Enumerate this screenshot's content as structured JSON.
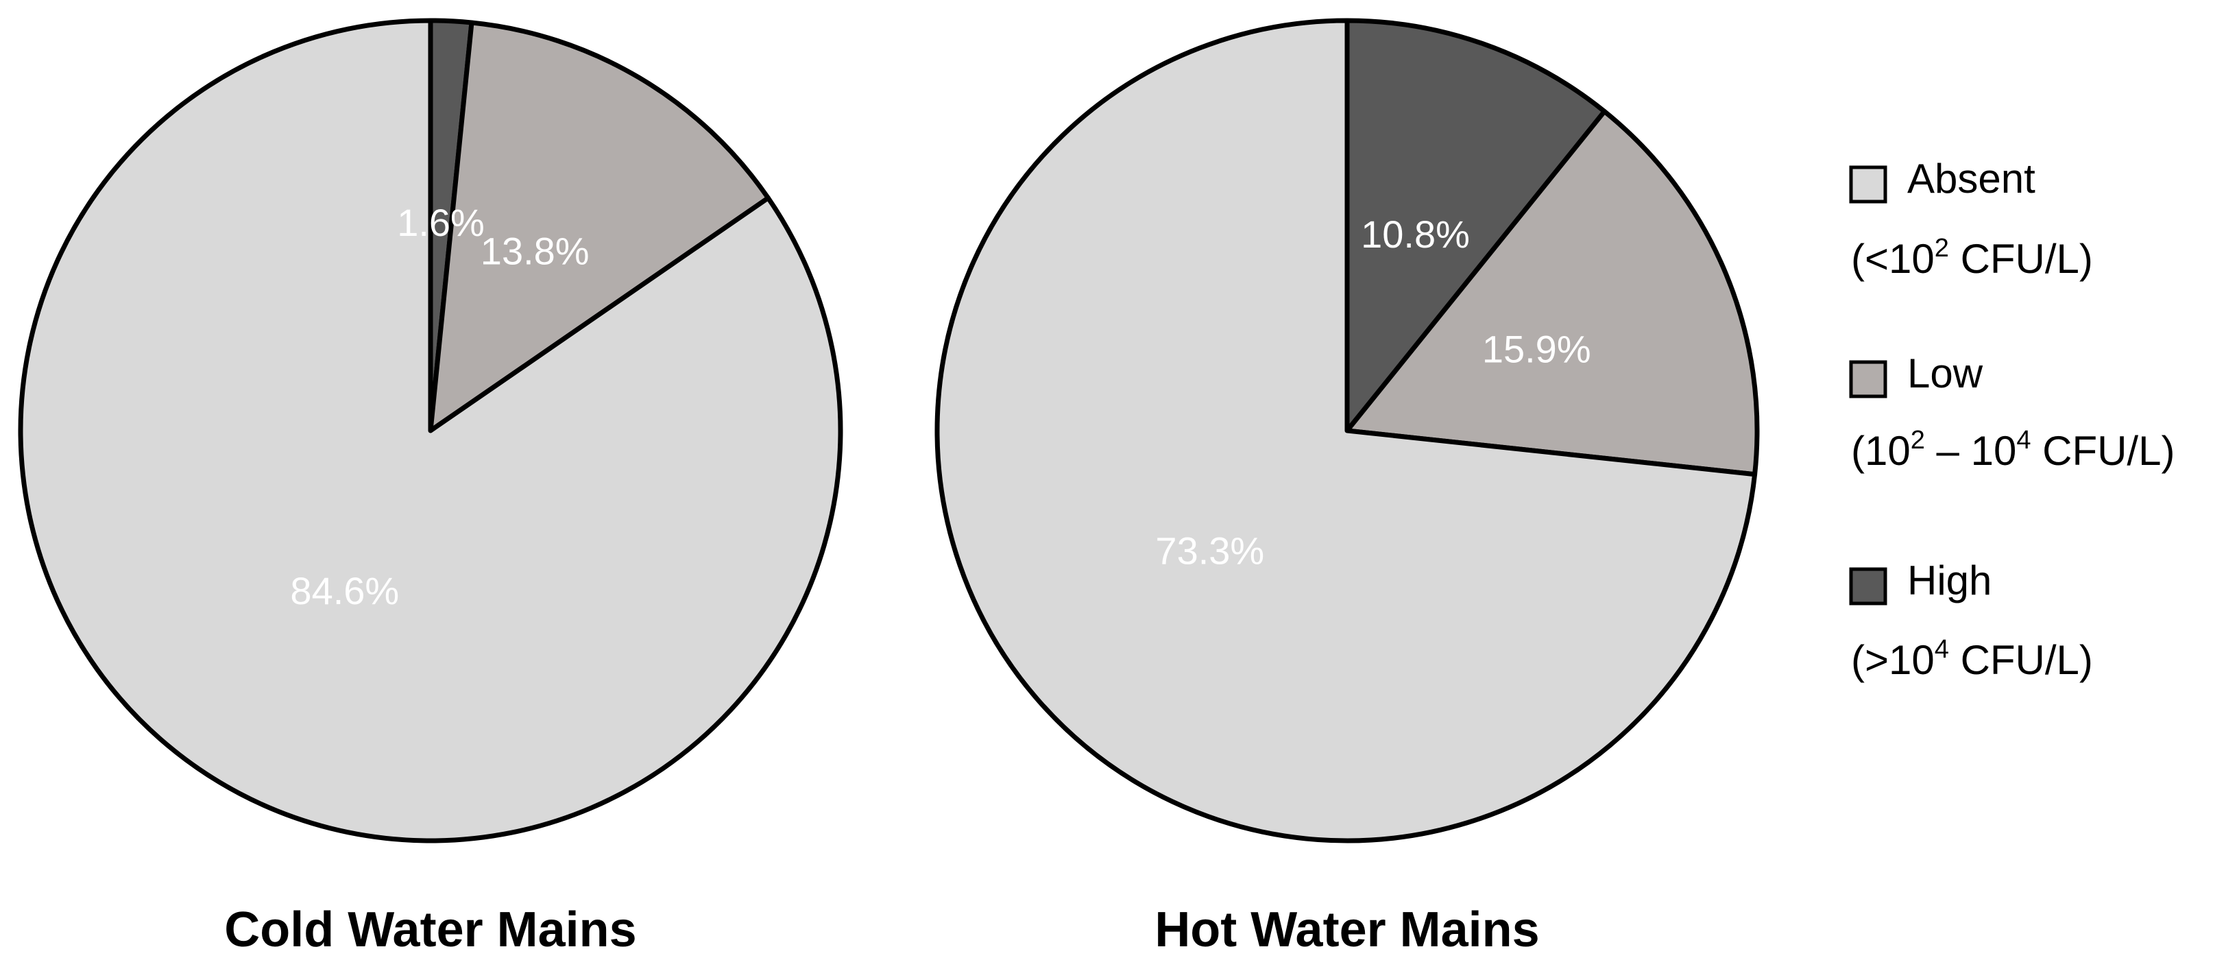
{
  "chart_data": [
    {
      "type": "pie",
      "title": "Cold Water Mains",
      "categories": [
        "High",
        "Low",
        "Absent"
      ],
      "values": [
        1.6,
        13.8,
        84.6
      ],
      "labels": [
        "1.6%",
        "13.8%",
        "84.6%"
      ],
      "start_angle": "top",
      "direction": "clockwise"
    },
    {
      "type": "pie",
      "title": "Hot Water Mains",
      "categories": [
        "High",
        "Low",
        "Absent"
      ],
      "values": [
        10.8,
        15.9,
        73.3
      ],
      "labels": [
        "10.8%",
        "15.9%",
        "73.3%"
      ],
      "start_angle": "top",
      "direction": "clockwise"
    }
  ],
  "legend": {
    "placement": "right",
    "entries": [
      {
        "category": "Absent",
        "name": "Absent",
        "range_parts": [
          [
            "(<10",
            ""
          ],
          [
            "2",
            "sup"
          ],
          [
            " CFU/L)",
            ""
          ]
        ]
      },
      {
        "category": "Low",
        "name": "Low",
        "range_parts": [
          [
            "(10",
            ""
          ],
          [
            "2",
            "sup"
          ],
          [
            " – 10",
            ""
          ],
          [
            "4",
            "sup"
          ],
          [
            " CFU/L)",
            ""
          ]
        ]
      },
      {
        "category": "High",
        "name": "High",
        "range_parts": [
          [
            "(>10",
            ""
          ],
          [
            "4",
            "sup"
          ],
          [
            " CFU/L)",
            ""
          ]
        ]
      }
    ]
  },
  "colors": {
    "High": "#595959",
    "Low": "#b2adab",
    "Absent": "#d9d9d9",
    "outline": "#000000",
    "slice_label": "#ffffff"
  }
}
